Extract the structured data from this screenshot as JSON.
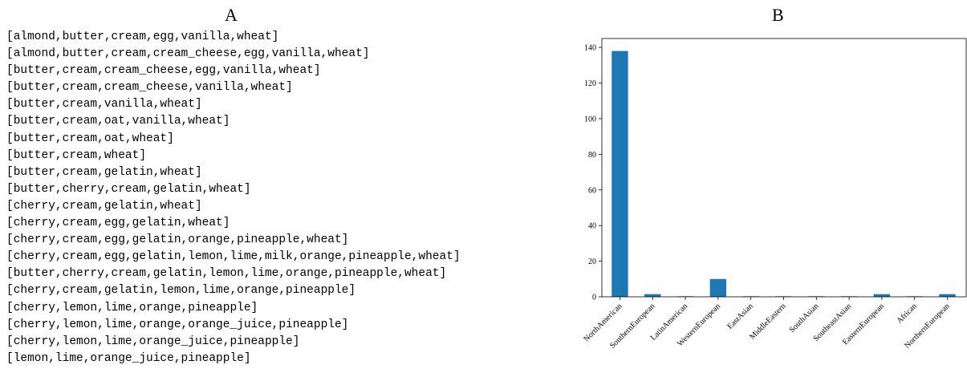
{
  "panel_a": {
    "label": "A",
    "recipes": [
      "[almond,butter,cream,egg,vanilla,wheat]",
      "[almond,butter,cream,cream_cheese,egg,vanilla,wheat]",
      "[butter,cream,cream_cheese,egg,vanilla,wheat]",
      "[butter,cream,cream_cheese,vanilla,wheat]",
      "[butter,cream,vanilla,wheat]",
      "[butter,cream,oat,vanilla,wheat]",
      "[butter,cream,oat,wheat]",
      "[butter,cream,wheat]",
      "[butter,cream,gelatin,wheat]",
      "[butter,cherry,cream,gelatin,wheat]",
      "[cherry,cream,gelatin,wheat]",
      "[cherry,cream,egg,gelatin,wheat]",
      "[cherry,cream,egg,gelatin,orange,pineapple,wheat]",
      "[cherry,cream,egg,gelatin,lemon,lime,milk,orange,pineapple,wheat]",
      "[butter,cherry,cream,gelatin,lemon,lime,orange,pineapple,wheat]",
      "[cherry,cream,gelatin,lemon,lime,orange,pineapple]",
      "[cherry,lemon,lime,orange,pineapple]",
      "[cherry,lemon,lime,orange,orange_juice,pineapple]",
      "[cherry,lemon,lime,orange_juice,pineapple]",
      "[lemon,lime,orange_juice,pineapple]"
    ]
  },
  "panel_b": {
    "label": "B"
  },
  "chart_data": {
    "type": "bar",
    "title": "",
    "xlabel": "",
    "ylabel": "",
    "categories": [
      "NorthAmerican",
      "SouthernEuropean",
      "LatinAmerican",
      "WesternEuropean",
      "EastAsian",
      "MiddleEastern",
      "SouthAsian",
      "SoutheastAsian",
      "EasternEuropean",
      "African",
      "NorthernEuropean"
    ],
    "values": [
      138,
      1.5,
      0.3,
      10,
      0.3,
      0.3,
      0.3,
      0.3,
      1.5,
      0.3,
      1.5
    ],
    "ylim": [
      0,
      145
    ],
    "yticks": [
      0,
      20,
      40,
      60,
      80,
      100,
      120,
      140
    ],
    "grid": false,
    "bar_color": "#1f77b4"
  }
}
